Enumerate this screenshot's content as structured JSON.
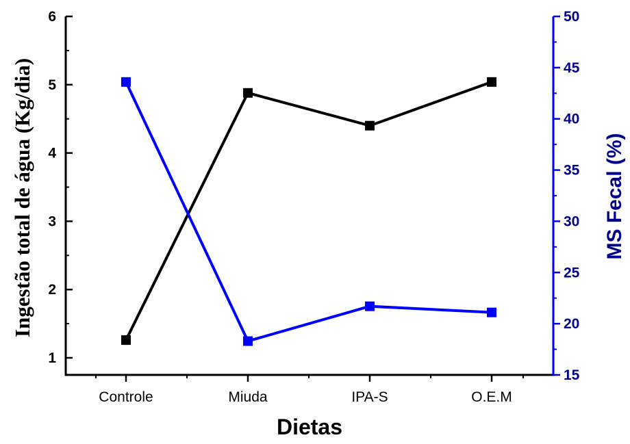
{
  "chart_data": {
    "type": "line",
    "categories": [
      "Controle",
      "Miuda",
      "IPA-S",
      "O.E.M"
    ],
    "xlabel": "Dietas",
    "ylabel_left": "Ingestão total de água  (Kg/dia)",
    "ylabel_right": "MS Fecal (%)",
    "ylim_left": [
      0.75,
      6
    ],
    "ylim_right": [
      15,
      50
    ],
    "yticks_left": [
      1,
      2,
      3,
      4,
      5,
      6
    ],
    "yticks_right": [
      15,
      20,
      25,
      30,
      35,
      40,
      45,
      50
    ],
    "grid": false,
    "series": [
      {
        "axis": "left",
        "color": "#000000",
        "marker": "square",
        "values": [
          1.26,
          4.88,
          4.4,
          5.04
        ]
      },
      {
        "axis": "right",
        "color": "#0000FF",
        "marker": "square",
        "values": [
          43.6,
          18.3,
          21.7,
          21.1
        ]
      }
    ],
    "colors": {
      "left_axis": "#000000",
      "right_axis": "#0000FF",
      "right_text": "#00008B"
    }
  }
}
